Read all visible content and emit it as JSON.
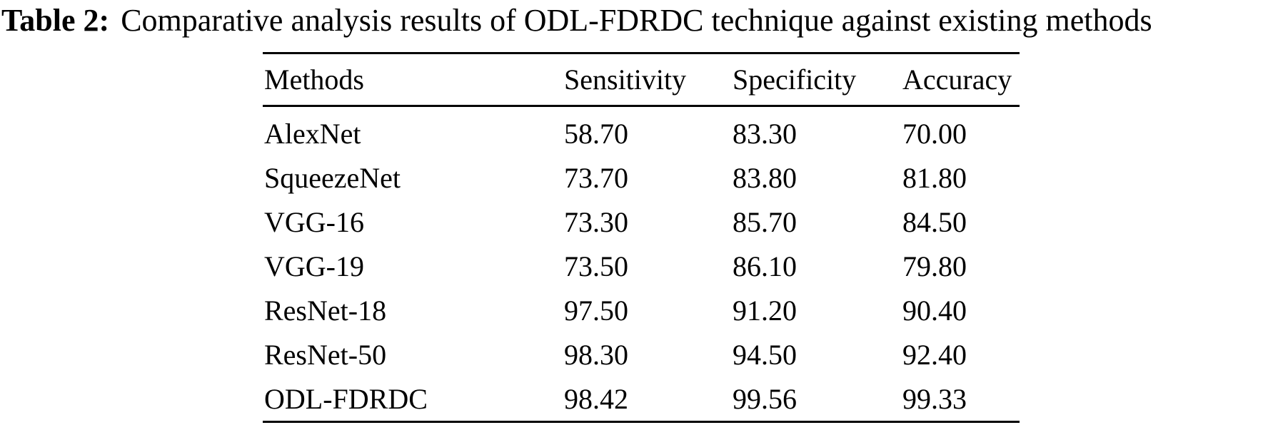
{
  "caption": {
    "label": "Table 2:",
    "text": "Comparative analysis results of ODL-FDRDC technique against existing methods"
  },
  "table": {
    "columns": [
      "Methods",
      "Sensitivity",
      "Specificity",
      "Accuracy"
    ],
    "rows": [
      {
        "method": "AlexNet",
        "sensitivity": "58.70",
        "specificity": "83.30",
        "accuracy": "70.00"
      },
      {
        "method": "SqueezeNet",
        "sensitivity": "73.70",
        "specificity": "83.80",
        "accuracy": "81.80"
      },
      {
        "method": "VGG-16",
        "sensitivity": "73.30",
        "specificity": "85.70",
        "accuracy": "84.50"
      },
      {
        "method": "VGG-19",
        "sensitivity": "73.50",
        "specificity": "86.10",
        "accuracy": "79.80"
      },
      {
        "method": "ResNet-18",
        "sensitivity": "97.50",
        "specificity": "91.20",
        "accuracy": "90.40"
      },
      {
        "method": "ResNet-50",
        "sensitivity": "98.30",
        "specificity": "94.50",
        "accuracy": "92.40"
      },
      {
        "method": "ODL-FDRDC",
        "sensitivity": "98.42",
        "specificity": "99.56",
        "accuracy": "99.33"
      }
    ],
    "text_color": "#000000",
    "rule_color": "#000000",
    "background_color": "#ffffff"
  }
}
